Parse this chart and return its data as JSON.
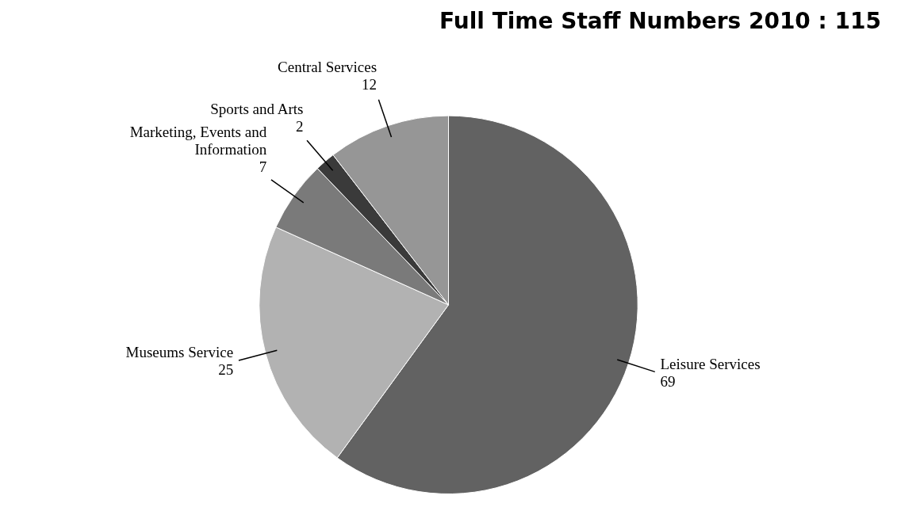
{
  "chart_data": {
    "type": "pie",
    "title": "Full Time Staff Numbers 2010 : 115",
    "categories": [
      "Leisure Services",
      "Museums Service",
      "Marketing, Events and Information",
      "Sports and Arts",
      "Central Services"
    ],
    "values": [
      69,
      25,
      7,
      2,
      12
    ],
    "colors": [
      "#626262",
      "#b2b2b2",
      "#7a7a7a",
      "#3a3a3a",
      "#969696"
    ],
    "data_labels": true,
    "legend": false
  }
}
